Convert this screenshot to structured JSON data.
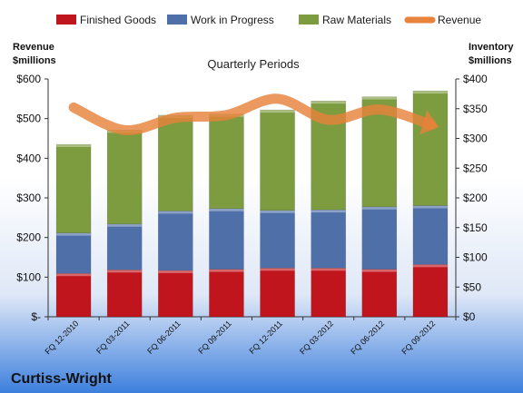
{
  "chart_data": {
    "type": "bar",
    "subtitle": "Quarterly Periods",
    "company": "Curtiss-Wright",
    "categories": [
      "FQ 12-2010",
      "FQ 03-2011",
      "FQ 06-2011",
      "FQ 09-2011",
      "FQ 12-2011",
      "FQ 03-2012",
      "FQ 06-2012",
      "FQ 09-2012"
    ],
    "left_axis": {
      "label_line1": "Revenue",
      "label_line2": "$millions",
      "ylim": [
        0,
        600
      ],
      "ticks": [
        "$-",
        "$100",
        "$200",
        "$300",
        "$400",
        "$500",
        "$600"
      ]
    },
    "right_axis": {
      "label_line1": "Inventory",
      "label_line2": "$millions",
      "ylim": [
        0,
        400
      ],
      "ticks": [
        "$0",
        "$50",
        "$100",
        "$150",
        "$200",
        "$250",
        "$300",
        "$350",
        "$400"
      ]
    },
    "series": [
      {
        "name": "Finished Goods",
        "axis": "right",
        "stack": "inventory",
        "color": "#c0151c",
        "values": [
          73,
          79,
          78,
          80,
          82,
          82,
          80,
          88
        ]
      },
      {
        "name": "Work in Progress",
        "axis": "right",
        "stack": "inventory",
        "color": "#4f6fa8",
        "values": [
          68,
          77,
          100,
          102,
          97,
          98,
          105,
          99
        ]
      },
      {
        "name": "Raw Materials",
        "axis": "right",
        "stack": "inventory",
        "color": "#7d9c3f",
        "values": [
          149,
          158,
          161,
          159,
          169,
          183,
          185,
          193
        ]
      },
      {
        "name": "Revenue",
        "axis": "left",
        "type": "line",
        "color": "#e7833b",
        "values": [
          528,
          471,
          502,
          509,
          550,
          497,
          523,
          485
        ]
      }
    ],
    "legend_position": "top",
    "grid": false
  }
}
